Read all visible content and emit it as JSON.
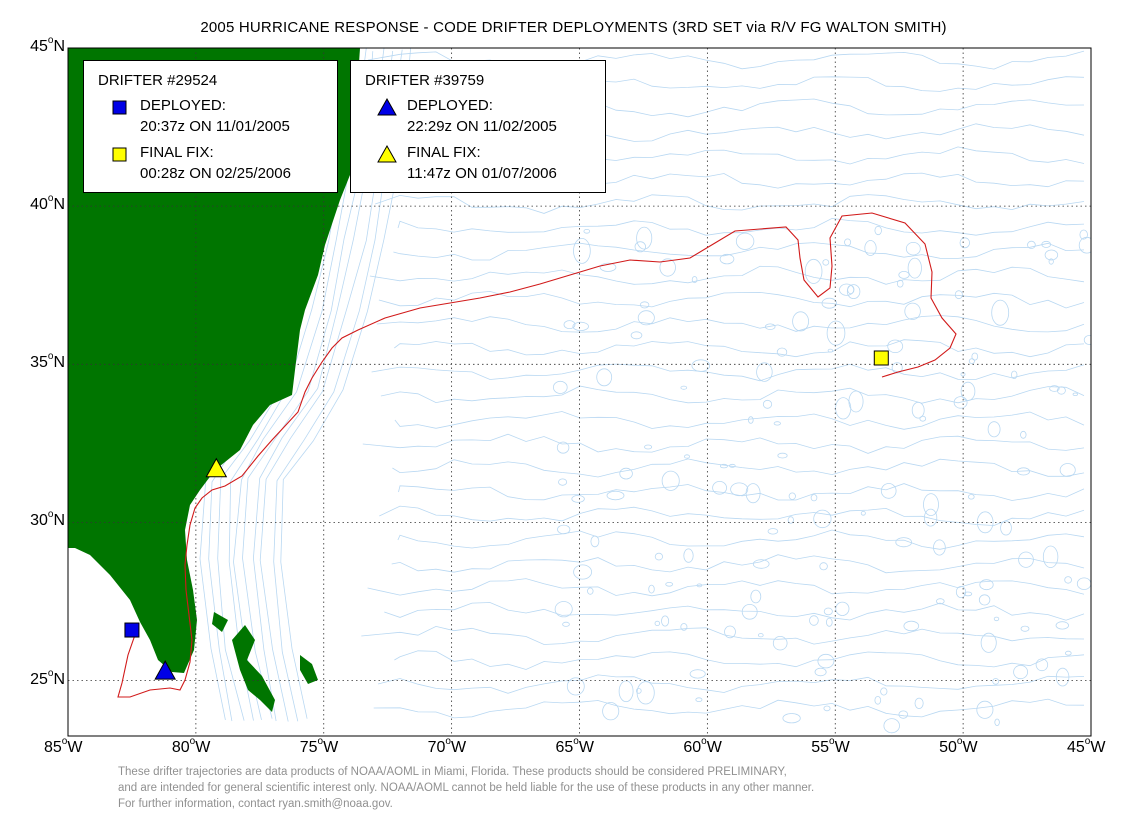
{
  "title": "2005 HURRICANE RESPONSE - CODE DRIFTER DEPLOYMENTS (3RD SET via R/V FG WALTON SMITH)",
  "axes": {
    "lon_labels": [
      "85",
      "80",
      "75",
      "70",
      "65",
      "60",
      "55",
      "50",
      "45"
    ],
    "lon_suffix": "W",
    "lat_labels": [
      "45",
      "40",
      "35",
      "30",
      "25"
    ],
    "lat_suffix": "N",
    "degree_symbol": "o",
    "lon_range": [
      -85,
      -45
    ],
    "lat_range": [
      23.25,
      45
    ],
    "grid": true
  },
  "colors": {
    "land": "#007500",
    "bathymetry": "#b9d8f2",
    "track": "#d11a1a",
    "deployed": "#0000e6",
    "final_fix": "#ffff00"
  },
  "legend": [
    {
      "header": "DRIFTER #29524",
      "marker": "square",
      "deployed_label": "DEPLOYED:",
      "deployed_time": "20:37z ON 11/01/2005",
      "final_label": "FINAL FIX:",
      "final_time": "00:28z ON 02/25/2006"
    },
    {
      "header": "DRIFTER #39759",
      "marker": "triangle",
      "deployed_label": "DEPLOYED:",
      "deployed_time": "22:29z ON 11/02/2005",
      "final_label": "FINAL FIX:",
      "final_time": "11:47z ON 01/07/2006"
    }
  ],
  "drifters": [
    {
      "id": "29524",
      "marker": "square",
      "deployed": {
        "lon": -82.5,
        "lat": 26.6
      },
      "final": {
        "lon": -53.2,
        "lat": 35.2
      }
    },
    {
      "id": "39759",
      "marker": "triangle",
      "deployed": {
        "lon": -81.2,
        "lat": 25.3
      },
      "final": {
        "lon": -79.2,
        "lat": 31.7
      }
    }
  ],
  "disclaimer": [
    "These drifter trajectories are data products of NOAA/AOML in Miami, Florida.  These products should be considered PRELIMINARY,",
    "and are intended for general scientific interest only.  NOAA/AOML cannot be held liable for the use of these products in any  other manner.",
    "For further information, contact ryan.smith@noaa.gov."
  ]
}
